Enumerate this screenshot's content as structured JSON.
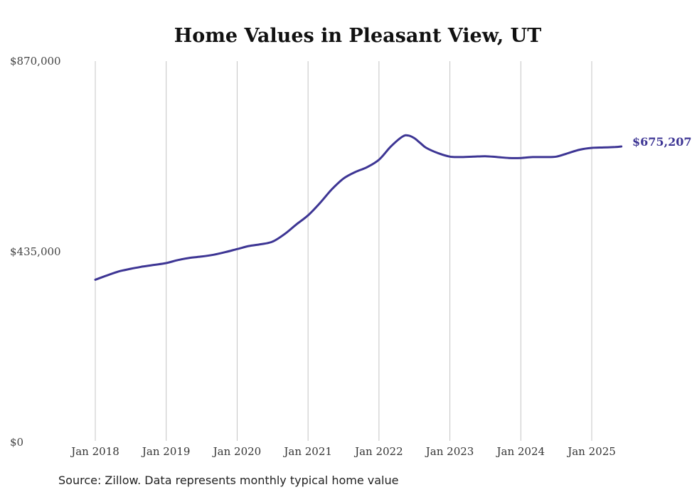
{
  "chart_data": {
    "type": "line",
    "title": "Home Values in Pleasant View, UT",
    "xlabel": "",
    "ylabel": "",
    "ylim": [
      0,
      870000
    ],
    "yticks": [
      {
        "value": 0,
        "label": "$0"
      },
      {
        "value": 435000,
        "label": "$435,000"
      },
      {
        "value": 870000,
        "label": "$870,000"
      }
    ],
    "xticks": [
      {
        "value": 2018,
        "label": "Jan 2018"
      },
      {
        "value": 2019,
        "label": "Jan 2019"
      },
      {
        "value": 2020,
        "label": "Jan 2020"
      },
      {
        "value": 2021,
        "label": "Jan 2021"
      },
      {
        "value": 2022,
        "label": "Jan 2022"
      },
      {
        "value": 2023,
        "label": "Jan 2023"
      },
      {
        "value": 2024,
        "label": "Jan 2024"
      },
      {
        "value": 2025,
        "label": "Jan 2025"
      }
    ],
    "grid": {
      "vertical": true,
      "horizontal": false
    },
    "series": [
      {
        "color": "#3d3594",
        "end_label": "$675,207",
        "x": [
          2018.0,
          2018.167,
          2018.333,
          2018.5,
          2018.667,
          2018.833,
          2019.0,
          2019.167,
          2019.333,
          2019.5,
          2019.667,
          2019.833,
          2020.0,
          2020.167,
          2020.333,
          2020.5,
          2020.667,
          2020.833,
          2021.0,
          2021.167,
          2021.333,
          2021.5,
          2021.667,
          2021.833,
          2022.0,
          2022.167,
          2022.333,
          2022.417,
          2022.5,
          2022.583,
          2022.667,
          2022.833,
          2023.0,
          2023.167,
          2023.333,
          2023.5,
          2023.667,
          2023.833,
          2024.0,
          2024.167,
          2024.333,
          2024.5,
          2024.667,
          2024.833,
          2025.0,
          2025.167,
          2025.333,
          2025.417
        ],
        "y": [
          371000,
          381000,
          390000,
          396000,
          401000,
          405000,
          409000,
          416000,
          421000,
          424000,
          428000,
          434000,
          441000,
          448000,
          452000,
          458000,
          475000,
          497000,
          518000,
          546000,
          577000,
          602000,
          617000,
          628000,
          645000,
          675000,
          698000,
          700000,
          694000,
          683000,
          672000,
          660000,
          652000,
          651000,
          652000,
          653000,
          651000,
          649000,
          649000,
          651000,
          651000,
          652000,
          660000,
          668000,
          672000,
          673000,
          674000,
          675207
        ]
      }
    ]
  },
  "source": "Source: Zillow. Data represents monthly typical home value"
}
